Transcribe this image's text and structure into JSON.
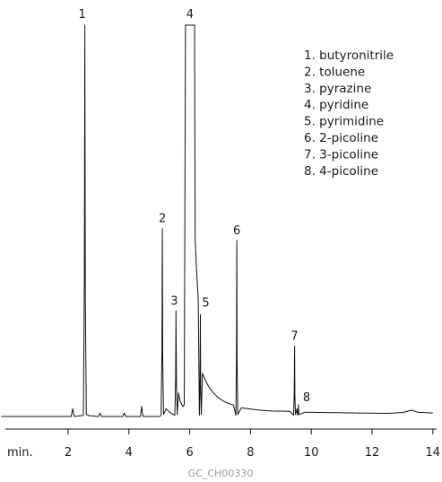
{
  "chart_data": {
    "type": "line",
    "title": "",
    "xlabel": "min.",
    "ylabel": "",
    "xlim": [
      -0.2,
      14
    ],
    "x_ticks": [
      2,
      4,
      6,
      8,
      10,
      12,
      14
    ],
    "x_tick_labels": [
      "2",
      "4",
      "6",
      "8",
      "10",
      "12",
      "14"
    ],
    "grid": false,
    "legend_position": "top-right",
    "legend": [
      "1. butyronitrile",
      "2. toluene",
      "3. pyrazine",
      "4. pyridine",
      "5. pyrimidine",
      "6. 2-picoline",
      "7. 3-picoline",
      "8. 4-picoline"
    ],
    "peaks": [
      {
        "label": "1",
        "x": 2.55,
        "height": 100
      },
      {
        "label": "2",
        "x": 5.1,
        "height": 48
      },
      {
        "label": "3",
        "x": 5.55,
        "height": 27
      },
      {
        "label": "4",
        "x": 5.95,
        "height": 100,
        "clipped": true
      },
      {
        "label": "5",
        "x": 6.35,
        "height": 26
      },
      {
        "label": "6",
        "x": 7.55,
        "height": 45
      },
      {
        "label": "7",
        "x": 9.45,
        "height": 18
      },
      {
        "label": "8",
        "x": 9.58,
        "height": 3
      }
    ],
    "footer": "GC_CH00330"
  }
}
